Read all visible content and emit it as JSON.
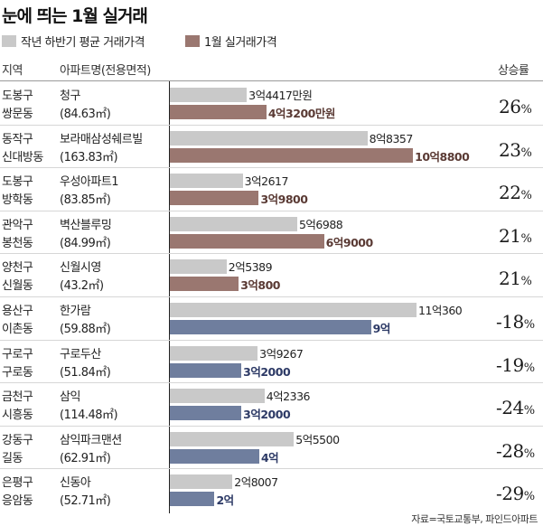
{
  "title": "눈에 띄는 1월 실거래",
  "legend": {
    "prev_label": "작년 하반기 평균 거래가격",
    "jan_label": "1월 실거래가격"
  },
  "columns": {
    "region": "지역",
    "apartment": "아파트명(전용면적)",
    "rate": "상승률"
  },
  "colors": {
    "prev_bar": "#c9c9c9",
    "jan_up": "#9a7770",
    "jan_down": "#6f7e9e",
    "jan_up_text": "#5a3a34",
    "jan_down_text": "#2d3a66"
  },
  "source": "자료=국토교통부, 파인드아파트",
  "chart_data": {
    "type": "bar",
    "title": "눈에 띄는 1월 실거래",
    "value_unit": "만원",
    "series": [
      {
        "name": "작년 하반기 평균 거래가격",
        "values": [
          34417,
          88357,
          32617,
          56988,
          25389,
          110360,
          39267,
          42336,
          55500,
          28007
        ]
      },
      {
        "name": "1월 실거래가격",
        "values": [
          43200,
          108800,
          39800,
          69000,
          30800,
          90000,
          32000,
          32000,
          40000,
          20000
        ]
      }
    ],
    "rows": [
      {
        "district": "도봉구",
        "dong": "쌍문동",
        "apt": "청구",
        "area": "(84.63㎡)",
        "prev_label": "3억4417만원",
        "jan_label": "4억3200만원",
        "rate": "26",
        "direction": "up"
      },
      {
        "district": "동작구",
        "dong": "신대방동",
        "apt": "보라매삼성쉐르빌",
        "area": "(163.83㎡)",
        "prev_label": "8억8357",
        "jan_label": "10억8800",
        "rate": "23",
        "direction": "up"
      },
      {
        "district": "도봉구",
        "dong": "방학동",
        "apt": "우성아파트1",
        "area": "(83.85㎡)",
        "prev_label": "3억2617",
        "jan_label": "3억9800",
        "rate": "22",
        "direction": "up"
      },
      {
        "district": "관악구",
        "dong": "봉천동",
        "apt": "벽산블루밍",
        "area": "(84.99㎡)",
        "prev_label": "5억6988",
        "jan_label": "6억9000",
        "rate": "21",
        "direction": "up"
      },
      {
        "district": "양천구",
        "dong": "신월동",
        "apt": "신월시영",
        "area": "(43.2㎡)",
        "prev_label": "2억5389",
        "jan_label": "3억800",
        "rate": "21",
        "direction": "up"
      },
      {
        "district": "용산구",
        "dong": "이촌동",
        "apt": "한가람",
        "area": "(59.88㎡)",
        "prev_label": "11억360",
        "jan_label": "9억",
        "rate": "-18",
        "direction": "down"
      },
      {
        "district": "구로구",
        "dong": "구로동",
        "apt": "구로두산",
        "area": "(51.84㎡)",
        "prev_label": "3억9267",
        "jan_label": "3억2000",
        "rate": "-19",
        "direction": "down"
      },
      {
        "district": "금천구",
        "dong": "시흥동",
        "apt": "삼익",
        "area": "(114.48㎡)",
        "prev_label": "4억2336",
        "jan_label": "3억2000",
        "rate": "-24",
        "direction": "down"
      },
      {
        "district": "강동구",
        "dong": "길동",
        "apt": "삼익파크맨션",
        "area": "(62.91㎡)",
        "prev_label": "5억5500",
        "jan_label": "4억",
        "rate": "-28",
        "direction": "down"
      },
      {
        "district": "은평구",
        "dong": "응암동",
        "apt": "신동아",
        "area": "(52.71㎡)",
        "prev_label": "2억8007",
        "jan_label": "2억",
        "rate": "-29",
        "direction": "down"
      }
    ]
  }
}
